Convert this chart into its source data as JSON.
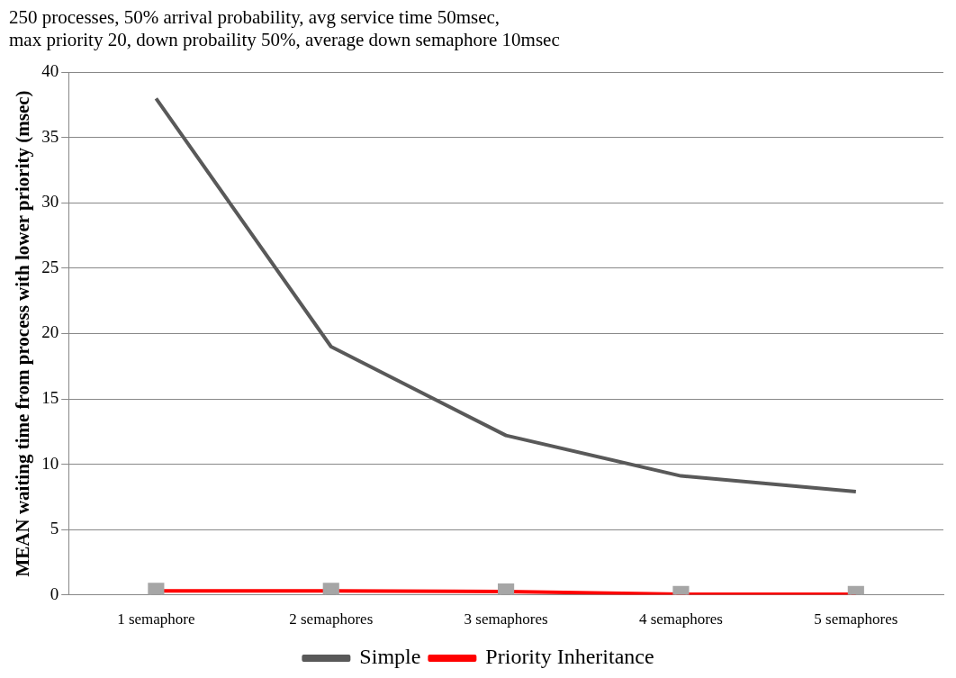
{
  "chart_data": {
    "type": "line",
    "title": "250 processes, 50% arrival probability, avg service time 50msec,\nmax priority 20, down probaility 50%, average down semaphore 10msec",
    "ylabel": "MEAN waiting time from process with lower priority (msec)",
    "categories": [
      "1 semaphore",
      "2 semaphores",
      "3 semaphores",
      "4 semaphores",
      "5 semaphores"
    ],
    "series": [
      {
        "name": "Simple",
        "color": "#595959",
        "marker": "none",
        "values": [
          38,
          19,
          12.2,
          9.1,
          7.9
        ]
      },
      {
        "name": "Priority Inheritance",
        "color": "#ff0000",
        "marker": "square",
        "values": [
          0.3,
          0.3,
          0.25,
          0.05,
          0.05
        ]
      }
    ],
    "ylim": [
      0,
      40
    ],
    "yticks": [
      0,
      5,
      10,
      15,
      20,
      25,
      30,
      35,
      40
    ],
    "grid": "y",
    "legend": "bottom"
  }
}
